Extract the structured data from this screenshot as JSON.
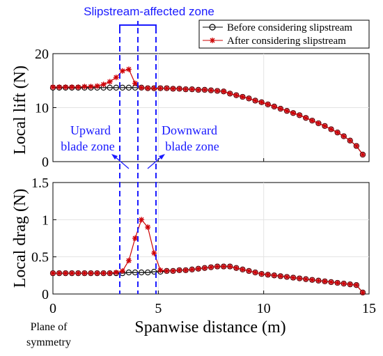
{
  "chart_data": [
    {
      "type": "line",
      "ylabel": "Local lift (N)",
      "xlim": [
        0,
        15
      ],
      "ylim": [
        0,
        20
      ],
      "yticks": [
        0,
        10,
        20
      ],
      "grid": true,
      "legend_position": "top-right",
      "series": [
        {
          "name": "Before considering slipstream",
          "color": "#000000",
          "marker": "circle",
          "x": [
            0,
            0.3,
            0.6,
            0.9,
            1.2,
            1.5,
            1.8,
            2.1,
            2.4,
            2.7,
            3.0,
            3.3,
            3.6,
            3.9,
            4.2,
            4.5,
            4.8,
            5.1,
            5.4,
            5.7,
            6.0,
            6.3,
            6.6,
            6.9,
            7.2,
            7.5,
            7.8,
            8.1,
            8.4,
            8.7,
            9.0,
            9.3,
            9.6,
            9.9,
            10.2,
            10.5,
            10.8,
            11.1,
            11.4,
            11.7,
            12.0,
            12.3,
            12.6,
            12.9,
            13.2,
            13.5,
            13.8,
            14.1,
            14.4,
            14.7
          ],
          "values": [
            13.7,
            13.7,
            13.7,
            13.7,
            13.7,
            13.7,
            13.7,
            13.7,
            13.7,
            13.7,
            13.7,
            13.7,
            13.7,
            13.7,
            13.7,
            13.6,
            13.6,
            13.6,
            13.6,
            13.5,
            13.5,
            13.4,
            13.4,
            13.3,
            13.3,
            13.2,
            13.1,
            13.0,
            12.6,
            12.3,
            12.0,
            11.7,
            11.3,
            11.0,
            10.6,
            10.2,
            9.8,
            9.4,
            9.0,
            8.6,
            8.1,
            7.6,
            7.1,
            6.6,
            6.0,
            5.4,
            4.7,
            3.9,
            2.9,
            1.3
          ]
        },
        {
          "name": "After considering slipstream",
          "color": "#cc0000",
          "marker": "asterisk",
          "x": [
            0,
            0.3,
            0.6,
            0.9,
            1.2,
            1.5,
            1.8,
            2.1,
            2.4,
            2.7,
            3.0,
            3.3,
            3.6,
            3.9,
            4.2,
            4.5,
            4.8,
            5.1,
            5.4,
            5.7,
            6.0,
            6.3,
            6.6,
            6.9,
            7.2,
            7.5,
            7.8,
            8.1,
            8.4,
            8.7,
            9.0,
            9.3,
            9.6,
            9.9,
            10.2,
            10.5,
            10.8,
            11.1,
            11.4,
            11.7,
            12.0,
            12.3,
            12.6,
            12.9,
            13.2,
            13.5,
            13.8,
            14.1,
            14.4,
            14.7
          ],
          "values": [
            13.8,
            13.8,
            13.8,
            13.8,
            13.8,
            13.9,
            13.9,
            14.0,
            14.3,
            14.8,
            15.6,
            16.8,
            17.1,
            14.5,
            13.7,
            13.6,
            13.6,
            13.6,
            13.6,
            13.5,
            13.5,
            13.4,
            13.4,
            13.3,
            13.3,
            13.2,
            13.1,
            13.0,
            12.6,
            12.3,
            12.0,
            11.7,
            11.3,
            11.0,
            10.6,
            10.2,
            9.8,
            9.4,
            9.0,
            8.6,
            8.1,
            7.6,
            7.1,
            6.6,
            6.0,
            5.4,
            4.7,
            3.9,
            2.9,
            1.3
          ]
        }
      ],
      "annotations": {
        "zone_title": "Slipstream-affected zone",
        "upward_line1": "Upward",
        "upward_line2": "blade zone",
        "downward_line1": "Downward",
        "downward_line2": "blade zone"
      }
    },
    {
      "type": "line",
      "ylabel": "Local drag (N)",
      "xlabel": "Spanwise distance (m)",
      "xlim": [
        0,
        15
      ],
      "ylim": [
        0,
        1.5
      ],
      "xticks": [
        0,
        5,
        10,
        15
      ],
      "yticks": [
        "0",
        "0.5",
        "1",
        "1.5"
      ],
      "grid": true,
      "series": [
        {
          "name": "Before considering slipstream",
          "color": "#000000",
          "marker": "circle",
          "x": [
            0,
            0.3,
            0.6,
            0.9,
            1.2,
            1.5,
            1.8,
            2.1,
            2.4,
            2.7,
            3.0,
            3.3,
            3.6,
            3.9,
            4.2,
            4.5,
            4.8,
            5.1,
            5.4,
            5.7,
            6.0,
            6.3,
            6.6,
            6.9,
            7.2,
            7.5,
            7.8,
            8.1,
            8.4,
            8.7,
            9.0,
            9.3,
            9.6,
            9.9,
            10.2,
            10.5,
            10.8,
            11.1,
            11.4,
            11.7,
            12.0,
            12.3,
            12.6,
            12.9,
            13.2,
            13.5,
            13.8,
            14.1,
            14.4,
            14.7
          ],
          "values": [
            0.28,
            0.28,
            0.28,
            0.28,
            0.28,
            0.28,
            0.28,
            0.28,
            0.28,
            0.28,
            0.28,
            0.28,
            0.29,
            0.29,
            0.29,
            0.29,
            0.3,
            0.3,
            0.31,
            0.31,
            0.32,
            0.32,
            0.33,
            0.34,
            0.35,
            0.36,
            0.37,
            0.37,
            0.37,
            0.35,
            0.33,
            0.31,
            0.29,
            0.27,
            0.26,
            0.25,
            0.24,
            0.23,
            0.22,
            0.21,
            0.2,
            0.19,
            0.18,
            0.17,
            0.16,
            0.15,
            0.14,
            0.13,
            0.12,
            0.02
          ]
        },
        {
          "name": "After considering slipstream",
          "color": "#cc0000",
          "marker": "asterisk",
          "x": [
            0,
            0.3,
            0.6,
            0.9,
            1.2,
            1.5,
            1.8,
            2.1,
            2.4,
            2.7,
            3.0,
            3.3,
            3.6,
            3.9,
            4.2,
            4.5,
            4.8,
            5.1,
            5.4,
            5.7,
            6.0,
            6.3,
            6.6,
            6.9,
            7.2,
            7.5,
            7.8,
            8.1,
            8.4,
            8.7,
            9.0,
            9.3,
            9.6,
            9.9,
            10.2,
            10.5,
            10.8,
            11.1,
            11.4,
            11.7,
            12.0,
            12.3,
            12.6,
            12.9,
            13.2,
            13.5,
            13.8,
            14.1,
            14.4,
            14.7
          ],
          "values": [
            0.28,
            0.28,
            0.28,
            0.28,
            0.28,
            0.28,
            0.28,
            0.28,
            0.28,
            0.28,
            0.29,
            0.31,
            0.45,
            0.75,
            1.0,
            0.9,
            0.55,
            0.32,
            0.31,
            0.31,
            0.32,
            0.32,
            0.33,
            0.34,
            0.35,
            0.36,
            0.37,
            0.37,
            0.37,
            0.35,
            0.33,
            0.31,
            0.29,
            0.27,
            0.26,
            0.25,
            0.24,
            0.23,
            0.22,
            0.21,
            0.2,
            0.19,
            0.18,
            0.17,
            0.16,
            0.15,
            0.14,
            0.13,
            0.12,
            0.02
          ]
        }
      ],
      "annotations": {
        "x_origin_line1": "Plane of",
        "x_origin_line2": "symmetry"
      }
    }
  ]
}
